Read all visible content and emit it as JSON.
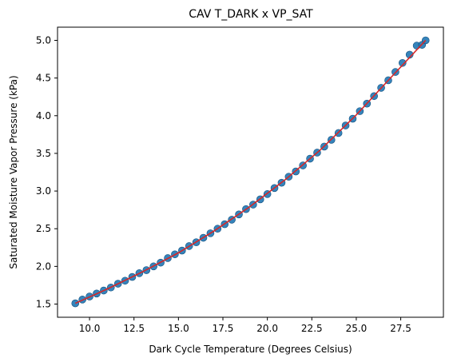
{
  "chart_data": {
    "type": "scatter",
    "title": "CAV T_DARK x VP_SAT",
    "xlabel": "Dark Cycle Temperature (Degrees Celsius)",
    "ylabel": "Saturated Moisture Vapor Pressure (kPa)",
    "xlim": [
      8.2,
      29.9
    ],
    "ylim": [
      1.325,
      5.175
    ],
    "xticks": [
      10.0,
      12.5,
      15.0,
      17.5,
      20.0,
      22.5,
      25.0,
      27.5
    ],
    "xtick_labels": [
      "10.0",
      "12.5",
      "15.0",
      "17.5",
      "20.0",
      "22.5",
      "25.0",
      "27.5"
    ],
    "yticks": [
      1.5,
      2.0,
      2.5,
      3.0,
      3.5,
      4.0,
      4.5,
      5.0
    ],
    "ytick_labels": [
      "1.5",
      "2.0",
      "2.5",
      "3.0",
      "3.5",
      "4.0",
      "4.5",
      "5.0"
    ],
    "grid": false,
    "series": [
      {
        "kind": "scatter",
        "color": "#1f77b4",
        "x": [
          9.2,
          9.6,
          10.0,
          10.4,
          10.8,
          11.2,
          11.6,
          12.0,
          12.4,
          12.8,
          13.2,
          13.6,
          14.0,
          14.4,
          14.8,
          15.2,
          15.6,
          16.0,
          16.4,
          16.8,
          17.2,
          17.6,
          18.0,
          18.4,
          18.8,
          19.2,
          19.6,
          20.0,
          20.4,
          20.8,
          21.2,
          21.6,
          22.0,
          22.4,
          22.8,
          23.2,
          23.6,
          24.0,
          24.4,
          24.8,
          25.2,
          25.6,
          26.0,
          26.4,
          26.8,
          27.2,
          27.6,
          28.0,
          28.4,
          28.7,
          28.9
        ],
        "y": [
          1.51,
          1.56,
          1.6,
          1.64,
          1.68,
          1.72,
          1.77,
          1.81,
          1.86,
          1.91,
          1.95,
          2.0,
          2.05,
          2.11,
          2.16,
          2.21,
          2.27,
          2.32,
          2.38,
          2.44,
          2.5,
          2.56,
          2.62,
          2.69,
          2.76,
          2.82,
          2.89,
          2.96,
          3.04,
          3.11,
          3.19,
          3.26,
          3.34,
          3.43,
          3.51,
          3.59,
          3.68,
          3.77,
          3.87,
          3.96,
          4.06,
          4.16,
          4.26,
          4.37,
          4.47,
          4.58,
          4.7,
          4.81,
          4.93,
          4.94,
          5.0
        ]
      },
      {
        "kind": "line",
        "color": "#d62728",
        "x": [
          9.2,
          11.0,
          13.0,
          15.0,
          17.0,
          19.0,
          21.0,
          23.0,
          25.0,
          27.0,
          28.9
        ],
        "y": [
          1.51,
          1.7,
          1.93,
          2.18,
          2.47,
          2.79,
          3.15,
          3.55,
          4.01,
          4.52,
          5.0
        ]
      }
    ]
  }
}
